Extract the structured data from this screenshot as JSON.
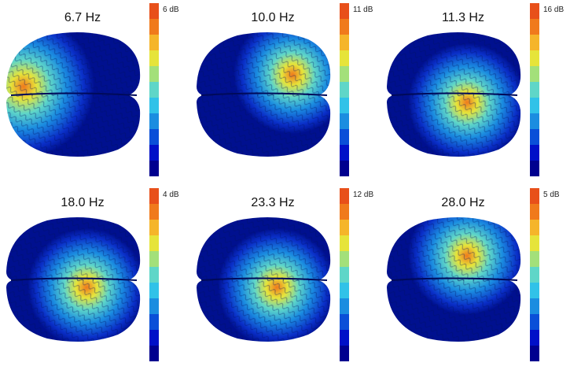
{
  "panels": [
    {
      "frequency": "6.7 Hz",
      "max_label": "6 dB",
      "max_db": 6,
      "hotspot": "left"
    },
    {
      "frequency": "10.0 Hz",
      "max_label": "11 dB",
      "max_db": 11,
      "hotspot": "center-right"
    },
    {
      "frequency": "11.3 Hz",
      "max_label": "16 dB",
      "max_db": 16,
      "hotspot": "center"
    },
    {
      "frequency": "18.0 Hz",
      "max_label": "4 dB",
      "max_db": 4,
      "hotspot": "center"
    },
    {
      "frequency": "23.3 Hz",
      "max_label": "12 dB",
      "max_db": 12,
      "hotspot": "center"
    },
    {
      "frequency": "28.0 Hz",
      "max_label": "5 dB",
      "max_db": 5,
      "hotspot": "top-center"
    }
  ],
  "colormap": [
    "#00008f",
    "#0010c8",
    "#0a4fd8",
    "#1b8de0",
    "#31c2e8",
    "#5fd6c8",
    "#a3e07a",
    "#e6e43a",
    "#f5b52a",
    "#f07a1c",
    "#e8501a"
  ]
}
